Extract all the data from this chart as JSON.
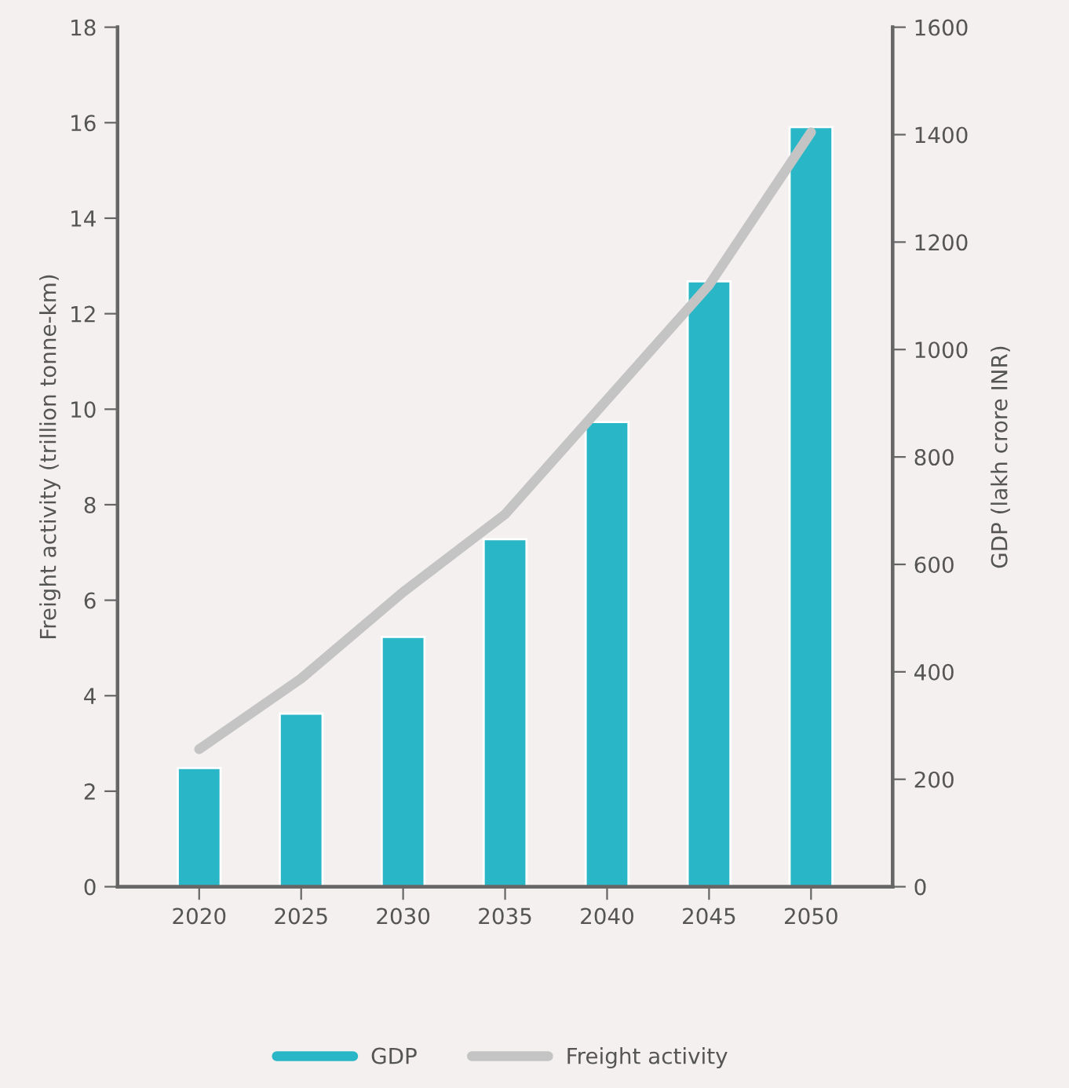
{
  "chart_data": {
    "type": "bar",
    "categories": [
      "2020",
      "2025",
      "2030",
      "2035",
      "2040",
      "2045",
      "2050"
    ],
    "ylabel": "Freight activity (trillion tonne-km)",
    "y2label": "GDP (lakh crore INR)",
    "ylim": [
      0,
      18
    ],
    "yticks": [
      0,
      2,
      4,
      6,
      8,
      10,
      12,
      14,
      16,
      18
    ],
    "y2lim": [
      0,
      1600
    ],
    "y2ticks": [
      0,
      200,
      400,
      600,
      800,
      1000,
      1200,
      1400,
      1600
    ],
    "series": [
      {
        "name": "GDP",
        "axis": "y2",
        "color": "#29b6c6",
        "values": [
          221,
          322,
          465,
          647,
          865,
          1127,
          1414
        ]
      },
      {
        "name": "Freight activity",
        "type": "line",
        "axis": "y",
        "color": "#c4c4c4",
        "values": [
          2.88,
          4.36,
          6.17,
          7.8,
          10.2,
          12.6,
          15.8
        ]
      }
    ],
    "legend": "bottom",
    "grid": false,
    "marker": "none",
    "line_style": "solid"
  }
}
